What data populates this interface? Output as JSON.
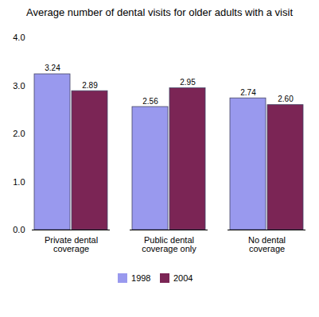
{
  "chart_data": {
    "type": "bar",
    "title": "Average number of dental visits for older adults with a visit",
    "categories": [
      "Private dental\ncoverage",
      "Public dental\ncoverage only",
      "No dental\ncoverage"
    ],
    "series": [
      {
        "name": "1998",
        "color": "#9999ee",
        "values": [
          3.24,
          2.56,
          2.74
        ],
        "value_labels": [
          "3.24",
          "2.56",
          "2.74"
        ]
      },
      {
        "name": "2004",
        "color": "#7b2555",
        "values": [
          2.89,
          2.95,
          2.6
        ],
        "value_labels": [
          "2.89",
          "2.95",
          "2.60"
        ]
      }
    ],
    "ylim": [
      0,
      4
    ],
    "yticks": [
      0,
      1,
      2,
      3,
      4
    ],
    "grid": false,
    "legend": "bottom",
    "data_labels": true
  }
}
